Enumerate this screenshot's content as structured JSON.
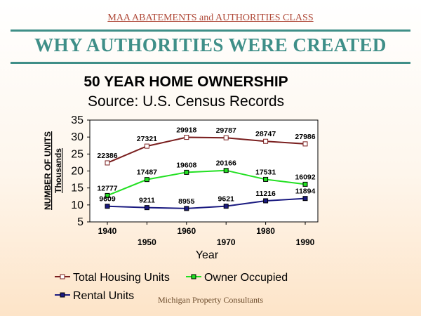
{
  "header": {
    "caption": "MAA ABATEMENTS and AUTHORITIES CLASS",
    "title": "WHY AUTHORITIES WERE CREATED"
  },
  "footer": {
    "credit": "Michigan Property Consultants"
  },
  "chart_data": {
    "type": "line",
    "title": "50 YEAR HOME OWNERSHIP",
    "subtitle": "Source: U.S. Census Records",
    "xlabel": "Year",
    "ylabel": "NUMBER OF UNITS",
    "ylabel_unit": "Thousands",
    "x": [
      1940,
      1950,
      1960,
      1970,
      1980,
      1990
    ],
    "ylim": [
      5,
      35
    ],
    "yticks": [
      5,
      10,
      15,
      20,
      25,
      30,
      35
    ],
    "grid": false,
    "legend_position": "bottom",
    "series": [
      {
        "name": "Total Housing Units",
        "color": "#7a1f1f",
        "marker": "hollow-square",
        "values": [
          22.386,
          27.321,
          29.918,
          29.787,
          28.747,
          27.986
        ],
        "labels": [
          "22386",
          "27321",
          "29918",
          "29787",
          "28747",
          "27986"
        ]
      },
      {
        "name": "Owner Occupied",
        "color": "#22e022",
        "marker": "filled-square",
        "values": [
          12.777,
          17.487,
          19.608,
          20.166,
          17.531,
          16.092
        ],
        "labels": [
          "12777",
          "17487",
          "19608",
          "20166",
          "17531",
          "16092"
        ]
      },
      {
        "name": "Rental Units",
        "color": "#1a1a80",
        "marker": "filled-square",
        "values": [
          9.609,
          9.211,
          8.955,
          9.621,
          11.216,
          11.894
        ],
        "labels": [
          "9609",
          "9211",
          "8955",
          "9621",
          "11216",
          "11894"
        ]
      }
    ]
  }
}
